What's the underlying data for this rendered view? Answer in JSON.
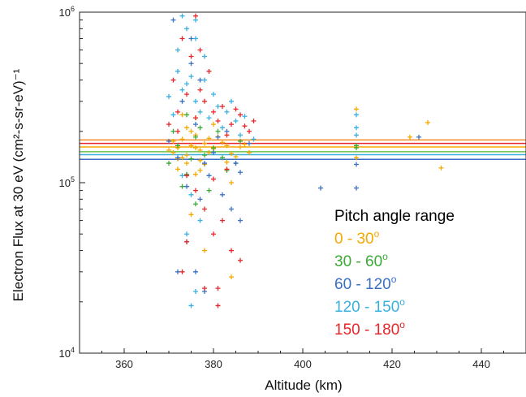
{
  "chart_data": {
    "type": "scatter",
    "xlabel": "Altitude (km)",
    "ylabel": "Electron Flux at 30 eV (cm²-s-sr-eV)⁻¹",
    "xlim": [
      350,
      450
    ],
    "ylim": [
      10000,
      1000000
    ],
    "yscale": "log",
    "x_ticks": [
      360,
      380,
      400,
      420,
      440
    ],
    "x_tick_labels": [
      "360",
      "380",
      "400",
      "420",
      "440"
    ],
    "y_ticks": [
      10000,
      100000,
      1000000
    ],
    "y_tick_labels": [
      {
        "base": "10",
        "exp": "4"
      },
      {
        "base": "10",
        "exp": "5"
      },
      {
        "base": "10",
        "exp": "6"
      }
    ],
    "grid": false,
    "legend": {
      "title": "Pitch angle range",
      "placement": "bottom-right",
      "entries": [
        {
          "range": "0 - 30",
          "sup": "o",
          "color": "#f5a800"
        },
        {
          "range": "30 - 60",
          "sup": "o",
          "color": "#3aaa35"
        },
        {
          "range": "60 - 120",
          "sup": "o",
          "color": "#3a6fc4"
        },
        {
          "range": "120 - 150",
          "sup": "o",
          "color": "#39b0e0"
        },
        {
          "range": "150 - 180",
          "sup": "o",
          "color": "#e8262a"
        }
      ]
    },
    "reference_lines": [
      {
        "color": "#f08a24",
        "y": 178000
      },
      {
        "color": "#e8262a",
        "y": 170000
      },
      {
        "color": "#f5a800",
        "y": 162000
      },
      {
        "color": "#6cc04a",
        "y": 152000
      },
      {
        "color": "#39b0e0",
        "y": 146000
      },
      {
        "color": "#3a6fc4",
        "y": 137000
      }
    ],
    "series": [
      {
        "color": "#f5a800",
        "points": [
          [
            371,
            150000
          ],
          [
            372,
            120000
          ],
          [
            373,
            180000
          ],
          [
            374,
            145000
          ],
          [
            375,
            200000
          ],
          [
            376,
            160000
          ],
          [
            377,
            135000
          ],
          [
            378,
            170000
          ],
          [
            379,
            150000
          ],
          [
            372,
            160000
          ],
          [
            374,
            130000
          ],
          [
            376,
            190000
          ],
          [
            373,
            140000
          ],
          [
            375,
            165000
          ],
          [
            377,
            155000
          ],
          [
            371,
            175000
          ],
          [
            378,
            128000
          ],
          [
            380,
            158000
          ],
          [
            382,
            172000
          ],
          [
            384,
            148000
          ],
          [
            386,
            162000
          ],
          [
            383,
            132000
          ],
          [
            381,
            186000
          ],
          [
            385,
            142000
          ],
          [
            387,
            168000
          ],
          [
            370,
            155000
          ],
          [
            374,
            210000
          ],
          [
            376,
            112000
          ],
          [
            372,
            138000
          ],
          [
            379,
            182000
          ],
          [
            383,
            165000
          ],
          [
            388,
            150000
          ],
          [
            377,
            118000
          ],
          [
            384,
            100000
          ],
          [
            378,
            40000
          ],
          [
            384,
            28000
          ],
          [
            375,
            65000
          ],
          [
            412,
            140000
          ],
          [
            424,
            185000
          ],
          [
            428,
            225000
          ],
          [
            431,
            122000
          ],
          [
            412,
            270000
          ],
          [
            373,
            250000
          ],
          [
            376,
            240000
          ],
          [
            380,
            220000
          ]
        ]
      },
      {
        "color": "#3aaa35",
        "points": [
          [
            370,
            130000
          ],
          [
            372,
            165000
          ],
          [
            374,
            112000
          ],
          [
            376,
            185000
          ],
          [
            378,
            145000
          ],
          [
            371,
            200000
          ],
          [
            375,
            138000
          ],
          [
            380,
            160000
          ],
          [
            383,
            118000
          ],
          [
            386,
            175000
          ],
          [
            373,
            95000
          ],
          [
            377,
            210000
          ],
          [
            382,
            140000
          ],
          [
            385,
            130000
          ],
          [
            379,
            90000
          ],
          [
            412,
            165000
          ],
          [
            412,
            160000
          ],
          [
            381,
            200000
          ],
          [
            374,
            250000
          ],
          [
            376,
            75000
          ]
        ]
      },
      {
        "color": "#3a6fc4",
        "points": [
          [
            372,
            140000
          ],
          [
            374,
            95000
          ],
          [
            376,
            220000
          ],
          [
            378,
            130000
          ],
          [
            370,
            175000
          ],
          [
            373,
            300000
          ],
          [
            375,
            500000
          ],
          [
            377,
            80000
          ],
          [
            380,
            150000
          ],
          [
            383,
            200000
          ],
          [
            386,
            115000
          ],
          [
            388,
            170000
          ],
          [
            374,
            45000
          ],
          [
            376,
            30000
          ],
          [
            372,
            30000
          ],
          [
            404,
            93000
          ],
          [
            412,
            93000
          ],
          [
            412,
            128000
          ],
          [
            426,
            185000
          ],
          [
            381,
            185000
          ],
          [
            384,
            70000
          ],
          [
            386,
            60000
          ],
          [
            371,
            900000
          ],
          [
            375,
            700000
          ],
          [
            377,
            400000
          ],
          [
            379,
            110000
          ],
          [
            382,
            85000
          ],
          [
            385,
            130000
          ],
          [
            378,
            23000
          ]
        ]
      },
      {
        "color": "#39b0e0",
        "points": [
          [
            371,
            250000
          ],
          [
            373,
            350000
          ],
          [
            375,
            420000
          ],
          [
            372,
            600000
          ],
          [
            374,
            800000
          ],
          [
            376,
            300000
          ],
          [
            377,
            260000
          ],
          [
            378,
            550000
          ],
          [
            370,
            320000
          ],
          [
            379,
            240000
          ],
          [
            381,
            280000
          ],
          [
            383,
            260000
          ],
          [
            385,
            230000
          ],
          [
            387,
            245000
          ],
          [
            380,
            330000
          ],
          [
            382,
            210000
          ],
          [
            384,
            300000
          ],
          [
            386,
            190000
          ],
          [
            389,
            180000
          ],
          [
            373,
            110000
          ],
          [
            375,
            85000
          ],
          [
            377,
            60000
          ],
          [
            374,
            50000
          ],
          [
            375,
            19000
          ],
          [
            376,
            23000
          ],
          [
            412,
            190000
          ],
          [
            412,
            210000
          ],
          [
            412,
            250000
          ],
          [
            373,
            950000
          ],
          [
            376,
            700000
          ],
          [
            372,
            450000
          ],
          [
            374,
            380000
          ],
          [
            376,
            900000
          ],
          [
            378,
            400000
          ]
        ]
      },
      {
        "color": "#e8262a",
        "points": [
          [
            372,
            260000
          ],
          [
            374,
            330000
          ],
          [
            376,
            240000
          ],
          [
            378,
            300000
          ],
          [
            380,
            260000
          ],
          [
            382,
            280000
          ],
          [
            384,
            220000
          ],
          [
            386,
            250000
          ],
          [
            388,
            200000
          ],
          [
            371,
            400000
          ],
          [
            373,
            700000
          ],
          [
            375,
            550000
          ],
          [
            377,
            350000
          ],
          [
            379,
            450000
          ],
          [
            381,
            230000
          ],
          [
            383,
            190000
          ],
          [
            385,
            270000
          ],
          [
            387,
            215000
          ],
          [
            374,
            110000
          ],
          [
            376,
            90000
          ],
          [
            378,
            70000
          ],
          [
            380,
            50000
          ],
          [
            382,
            60000
          ],
          [
            384,
            40000
          ],
          [
            386,
            35000
          ],
          [
            373,
            30000
          ],
          [
            378,
            24000
          ],
          [
            381,
            24000
          ],
          [
            381,
            19000
          ],
          [
            374,
            45000
          ],
          [
            372,
            200000
          ],
          [
            376,
            950000
          ],
          [
            377,
            600000
          ],
          [
            370,
            220000
          ],
          [
            389,
            230000
          ],
          [
            383,
            120000
          ],
          [
            380,
            105000
          ]
        ]
      }
    ]
  }
}
